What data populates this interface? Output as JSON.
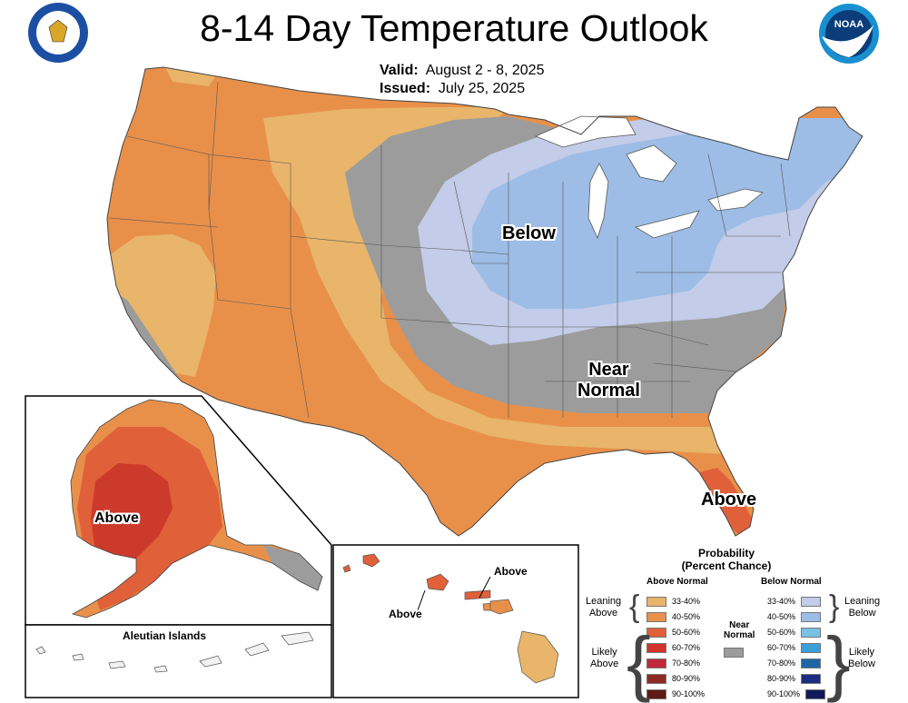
{
  "title": "8-14 Day Temperature Outlook",
  "valid_label": "Valid:",
  "valid_value": "August 2 - 8, 2025",
  "issued_label": "Issued:",
  "issued_value": "July 25, 2025",
  "regions": {
    "below": "Below",
    "near_line1": "Near",
    "near_line2": "Normal",
    "above_fl": "Above",
    "above_ak": "Above",
    "above_hi_1": "Above",
    "above_hi_2": "Above"
  },
  "aleutian_label": "Aleutian Islands",
  "legend": {
    "title_line1": "Probability",
    "title_line2": "(Percent Chance)",
    "above_head": "Above Normal",
    "below_head": "Below Normal",
    "near_head_1": "Near",
    "near_head_2": "Normal",
    "leaning_above_1": "Leaning",
    "leaning_above_2": "Above",
    "likely_above_1": "Likely",
    "likely_above_2": "Above",
    "leaning_below_1": "Leaning",
    "leaning_below_2": "Below",
    "likely_below_1": "Likely",
    "likely_below_2": "Below",
    "above_rows": [
      {
        "label": "33-40%",
        "color": "#e8b56a"
      },
      {
        "label": "40-50%",
        "color": "#e8904a"
      },
      {
        "label": "50-60%",
        "color": "#e0603a"
      },
      {
        "label": "60-70%",
        "color": "#d2342c"
      },
      {
        "label": "70-80%",
        "color": "#c0283a"
      },
      {
        "label": "80-90%",
        "color": "#8e2a26"
      },
      {
        "label": "90-100%",
        "color": "#5e1a14"
      }
    ],
    "below_rows": [
      {
        "label": "33-40%",
        "color": "#c3cce8"
      },
      {
        "label": "40-50%",
        "color": "#9dbde6"
      },
      {
        "label": "50-60%",
        "color": "#78c0e6"
      },
      {
        "label": "60-70%",
        "color": "#3aa0da"
      },
      {
        "label": "70-80%",
        "color": "#1c66a8"
      },
      {
        "label": "80-90%",
        "color": "#1c2c80"
      },
      {
        "label": "90-100%",
        "color": "#12185a"
      }
    ],
    "near_color": "#9c9c9c"
  },
  "logos": {
    "commerce": "department-of-commerce-seal",
    "noaa": "noaa-logo"
  }
}
